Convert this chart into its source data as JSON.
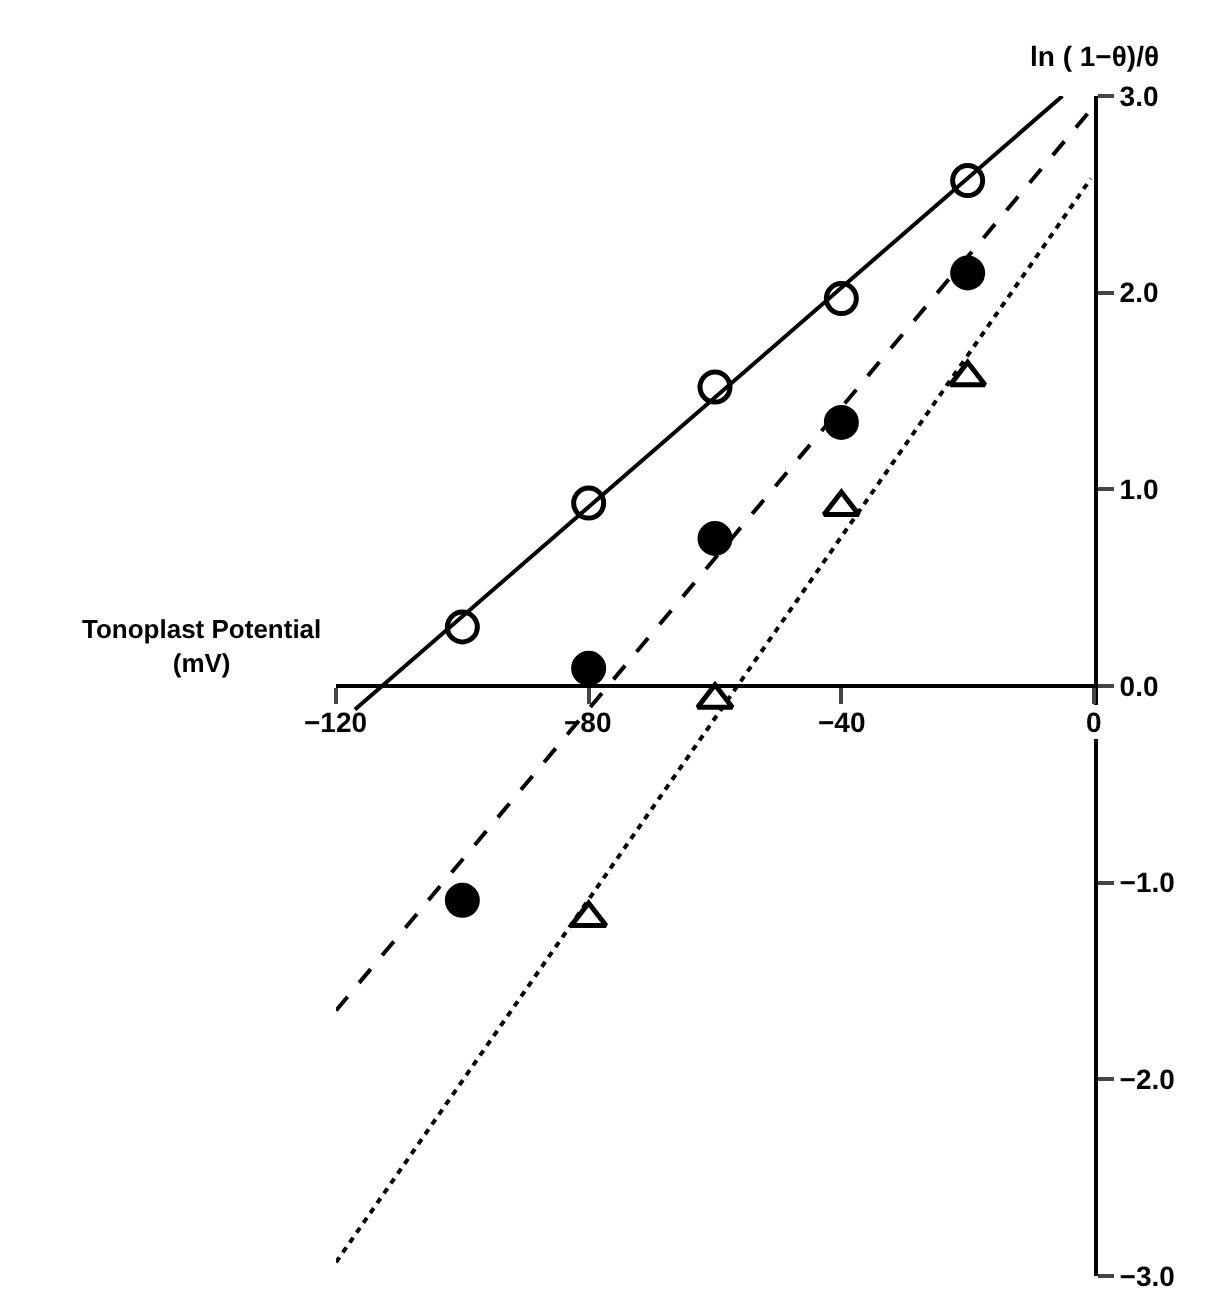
{
  "chart_data": {
    "type": "scatter",
    "xlabel": "Tonoplast Potential\n(mV)",
    "ylabel": "ln ( 1−θ)/θ",
    "xlim": [
      -120,
      0
    ],
    "ylim": [
      -3,
      3
    ],
    "xticks": [
      {
        "value": -120,
        "label": "−120"
      },
      {
        "value": -80,
        "label": "−80"
      },
      {
        "value": -40,
        "label": "−40"
      },
      0
    ],
    "yticks": [
      {
        "value": -3,
        "label": "−3.0"
      },
      {
        "value": -2,
        "label": "−2.0"
      },
      {
        "value": -1,
        "label": "−1.0"
      },
      {
        "value": 0,
        "label": "0.0"
      },
      {
        "value": 1,
        "label": "1.0"
      },
      {
        "value": 2,
        "label": "2.0"
      },
      {
        "value": 3,
        "label": "3.0"
      }
    ],
    "x": [
      -100,
      -80,
      -60,
      -40,
      -20
    ],
    "series": [
      {
        "marker": "circle",
        "color": "#ffffff",
        "values": [
          0.3,
          0.93,
          1.52,
          1.97,
          2.57
        ]
      },
      {
        "marker": "circle",
        "color": "#000000",
        "values": [
          -1.09,
          0.09,
          0.75,
          1.34,
          2.1
        ]
      },
      {
        "marker": "triangle",
        "color": "#ffffff",
        "x": [
          -80,
          -60,
          -40,
          -20
        ],
        "values": [
          -1.18,
          -0.07,
          0.91,
          1.57
        ]
      },
      {
        "type": "line",
        "line_style": "solid",
        "color": "#000000",
        "x": [
          -117,
          -5
        ],
        "values": [
          -0.12,
          3.0
        ]
      },
      {
        "type": "line",
        "line_style": "dashed",
        "color": "#000000",
        "x": [
          -120,
          -0.5
        ],
        "values": [
          -1.65,
          2.93
        ]
      },
      {
        "type": "line",
        "line_style": "dotted",
        "color": "#000000",
        "x": [
          -120,
          -0.5
        ],
        "values": [
          -2.93,
          2.58
        ]
      }
    ]
  }
}
